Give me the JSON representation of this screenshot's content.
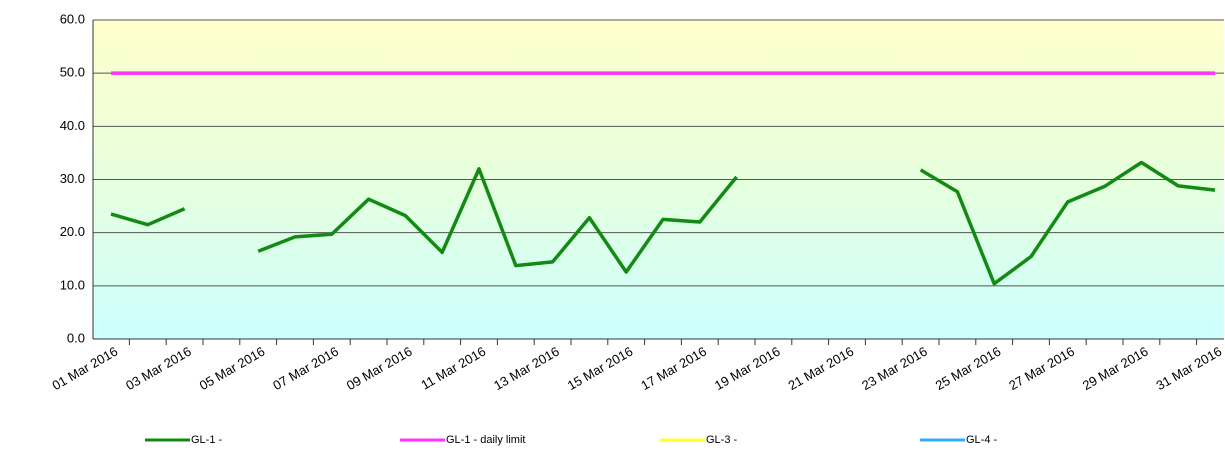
{
  "chart_data": {
    "type": "line",
    "categories": [
      "01 Mar 2016",
      null,
      "03 Mar 2016",
      null,
      "05 Mar 2016",
      null,
      "07 Mar 2016",
      null,
      "09 Mar 2016",
      null,
      "11 Mar 2016",
      null,
      "13 Mar 2016",
      null,
      "15 Mar 2016",
      null,
      "17 Mar 2016",
      null,
      "19 Mar 2016",
      null,
      "21 Mar 2016",
      null,
      "23 Mar 2016",
      null,
      "25 Mar 2016",
      null,
      "27 Mar 2016",
      null,
      "29 Mar 2016",
      null,
      "31 Mar 2016"
    ],
    "series": [
      {
        "name": "GL-1 -",
        "color": "#138a13",
        "values": [
          23.5,
          21.5,
          24.5,
          null,
          16.5,
          19.2,
          19.7,
          26.3,
          23.2,
          16.3,
          32.0,
          13.8,
          14.5,
          22.8,
          12.6,
          22.5,
          22.0,
          30.5,
          null,
          null,
          null,
          null,
          31.8,
          27.7,
          10.4,
          15.5,
          25.8,
          28.7,
          33.2,
          28.8,
          28.0
        ]
      },
      {
        "name": "GL-1 - daily limit",
        "color": "#ff33ff",
        "values": [
          50,
          50,
          50,
          50,
          50,
          50,
          50,
          50,
          50,
          50,
          50,
          50,
          50,
          50,
          50,
          50,
          50,
          50,
          50,
          50,
          50,
          50,
          50,
          50,
          50,
          50,
          50,
          50,
          50,
          50,
          50
        ]
      },
      {
        "name": "GL-3 -",
        "color": "#ffff33",
        "values": [
          null,
          null,
          null,
          null,
          null,
          null,
          null,
          null,
          null,
          null,
          null,
          null,
          null,
          null,
          null,
          null,
          null,
          null,
          null,
          null,
          null,
          null,
          null,
          null,
          null,
          null,
          null,
          null,
          null,
          null,
          null
        ]
      },
      {
        "name": "GL-4 -",
        "color": "#33aaff",
        "values": [
          null,
          null,
          null,
          null,
          null,
          null,
          null,
          null,
          null,
          null,
          null,
          null,
          null,
          null,
          null,
          null,
          null,
          null,
          null,
          null,
          null,
          null,
          null,
          null,
          null,
          null,
          null,
          null,
          null,
          null,
          null
        ]
      }
    ],
    "ylim": [
      0,
      60
    ],
    "yticks": [
      {
        "value": 0,
        "label": "0.0"
      },
      {
        "value": 10,
        "label": "10.0"
      },
      {
        "value": 20,
        "label": "20.0"
      },
      {
        "value": 30,
        "label": "30.0"
      },
      {
        "value": 40,
        "label": "40.0"
      },
      {
        "value": 50,
        "label": "50.0"
      },
      {
        "value": 60,
        "label": "60.0"
      }
    ],
    "grid": true,
    "legend": "bottom"
  }
}
